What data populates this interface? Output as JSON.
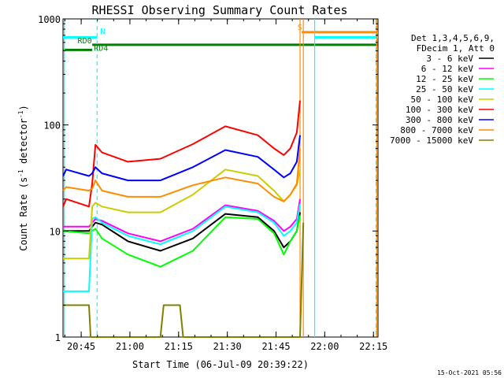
{
  "chart_data": {
    "type": "line",
    "title": "RHESSI Observing Summary Count Rates",
    "xlabel": "Start Time (06-Jul-09 20:39:22)",
    "ylabel": "Count Rate (s",
    "ylabel_exp": "-1",
    "ylabel_unit": " detector",
    "ylabel_end": ")",
    "y_scale": "log",
    "ylim": [
      1,
      1000
    ],
    "xlim_minutes": [
      0,
      97
    ],
    "x_ticks": [
      {
        "label": "20:45",
        "minutes": 5.6
      },
      {
        "label": "21:00",
        "minutes": 20.6
      },
      {
        "label": "21:15",
        "minutes": 35.6
      },
      {
        "label": "21:30",
        "minutes": 50.6
      },
      {
        "label": "21:45",
        "minutes": 65.6
      },
      {
        "label": "22:00",
        "minutes": 80.6
      },
      {
        "label": "22:15",
        "minutes": 95.6
      }
    ],
    "y_ticks": [
      {
        "label": "1",
        "value": 1
      },
      {
        "label": "10",
        "value": 10
      },
      {
        "label": "100",
        "value": 100
      },
      {
        "label": "1000",
        "value": 1000
      }
    ],
    "legend": {
      "placement": "top-right",
      "header_lines": [
        "Det 1,3,4,5,6,9,",
        "FDecim 1, Att 0"
      ]
    },
    "series": [
      {
        "name": "3 - 6 keV",
        "color": "#000000",
        "x": [
          0,
          8,
          10,
          12,
          20,
          30,
          40,
          50,
          60,
          65,
          68,
          70,
          72,
          73
        ],
        "y": [
          10,
          10,
          12,
          11.5,
          8,
          6.5,
          8.5,
          14.5,
          13.5,
          10,
          7,
          8,
          10,
          15
        ]
      },
      {
        "name": "6 - 12 keV",
        "color": "#ff00ff",
        "x": [
          0,
          8,
          10,
          12,
          20,
          30,
          40,
          50,
          60,
          65,
          68,
          70,
          72,
          73
        ],
        "y": [
          11,
          11,
          13,
          12.5,
          9.5,
          8,
          10.5,
          17.5,
          15.5,
          12.5,
          10,
          11,
          13,
          20
        ]
      },
      {
        "name": "12 - 25 keV",
        "color": "#00ff00",
        "x": [
          0,
          8,
          10,
          12,
          20,
          30,
          40,
          50,
          60,
          65,
          68,
          70,
          72,
          73
        ],
        "y": [
          10,
          9.5,
          10.5,
          8.5,
          6,
          4.6,
          6.5,
          13.5,
          13,
          9.5,
          6,
          8,
          10,
          14
        ]
      },
      {
        "name": "25 - 50 keV",
        "color": "#00ffff",
        "x": [
          0,
          1,
          8,
          9,
          10,
          12,
          20,
          30,
          40,
          50,
          60,
          65,
          68,
          70,
          72,
          73
        ],
        "y": [
          2.7,
          2.7,
          2.7,
          13,
          13.5,
          12,
          9,
          7.5,
          10,
          17,
          15,
          12,
          9,
          10,
          12,
          18
        ]
      },
      {
        "name": "50 - 100 keV",
        "color": "#cccc00",
        "x": [
          0,
          1,
          8,
          9,
          10,
          12,
          20,
          30,
          40,
          50,
          60,
          65,
          68,
          70,
          72,
          73
        ],
        "y": [
          5.5,
          5.5,
          5.5,
          17,
          18.5,
          17,
          15,
          15,
          22,
          38,
          33,
          24,
          19,
          22,
          27,
          38
        ]
      },
      {
        "name": "100 - 300 keV",
        "color": "#ff0000",
        "x": [
          0,
          1,
          8,
          9,
          10,
          12,
          20,
          30,
          40,
          50,
          60,
          65,
          68,
          70,
          72,
          73
        ],
        "y": [
          17,
          20,
          17,
          28,
          65,
          55,
          45,
          48,
          66,
          97,
          80,
          60,
          52,
          60,
          85,
          170
        ]
      },
      {
        "name": "300 - 800 keV",
        "color": "#0000ff",
        "x": [
          0,
          1,
          8,
          9,
          10,
          12,
          20,
          30,
          40,
          50,
          60,
          65,
          68,
          70,
          72,
          73
        ],
        "y": [
          33,
          38,
          33,
          35,
          40,
          35,
          30,
          30,
          40,
          58,
          50,
          38,
          32,
          35,
          45,
          80
        ]
      },
      {
        "name": "800 - 7000 keV",
        "color": "#ff8c00",
        "x": [
          0,
          1,
          8,
          9,
          10,
          12,
          20,
          30,
          40,
          50,
          60,
          65,
          68,
          70,
          72,
          73
        ],
        "y": [
          24,
          26,
          24,
          25,
          30,
          24,
          21,
          21,
          27,
          32,
          28,
          21,
          19,
          22,
          28,
          60
        ]
      },
      {
        "name": "7000 - 15000 keV",
        "color": "#808000",
        "x": [
          0,
          8,
          8.5,
          30,
          31,
          36,
          37,
          73,
          74
        ],
        "y": [
          2,
          2,
          1,
          1,
          2,
          2,
          1,
          1,
          12
        ]
      }
    ],
    "annotations": [
      {
        "text": "N",
        "color": "#00ffff",
        "x_minutes": 11.5,
        "y_value": 720
      },
      {
        "text": "RD0",
        "color": "#008000",
        "x_minutes": 4.5,
        "y_value": 590
      },
      {
        "text": "RD4",
        "color": "#008000",
        "x_minutes": 9.5,
        "y_value": 500
      },
      {
        "text": "S",
        "color": "#ff8c00",
        "x_minutes": 72.2,
        "y_value": 790
      }
    ],
    "markers": [
      {
        "kind": "hline",
        "color": "#00ffff",
        "y_value": 670,
        "x_from": 0,
        "x_to": 10.5
      },
      {
        "kind": "hline",
        "color": "#00ffff",
        "y_value": 670,
        "x_from": 77.5,
        "x_to": 97
      },
      {
        "kind": "hline",
        "color": "#ff8c00",
        "y_value": 750,
        "x_from": 73.5,
        "x_to": 97
      },
      {
        "kind": "hline",
        "color": "#008000",
        "y_value": 510,
        "x_from": 0,
        "x_to": 9
      },
      {
        "kind": "hline",
        "color": "#008000",
        "y_value": 570,
        "x_from": 9,
        "x_to": 97
      },
      {
        "kind": "vline",
        "color": "#00ffff",
        "x_minutes": 0.4,
        "dashed": false
      },
      {
        "kind": "vline",
        "color": "#00ffff",
        "x_minutes": 10.5,
        "dashed": true
      },
      {
        "kind": "vline",
        "color": "#ff8c00",
        "x_minutes": 73,
        "dashed": false
      },
      {
        "kind": "vline",
        "color": "#ff8c00",
        "x_minutes": 74,
        "dashed": false
      },
      {
        "kind": "vline",
        "color": "#00ffff",
        "x_minutes": 77.5,
        "dashed": false
      },
      {
        "kind": "vline",
        "color": "#ff8c00",
        "x_minutes": 96.6,
        "dashed": false
      },
      {
        "kind": "vline",
        "color": "#00ffff",
        "x_minutes": 96.4,
        "dashed": true
      }
    ]
  },
  "footer": {
    "date_stamp": "15-Oct-2021 05:56"
  }
}
